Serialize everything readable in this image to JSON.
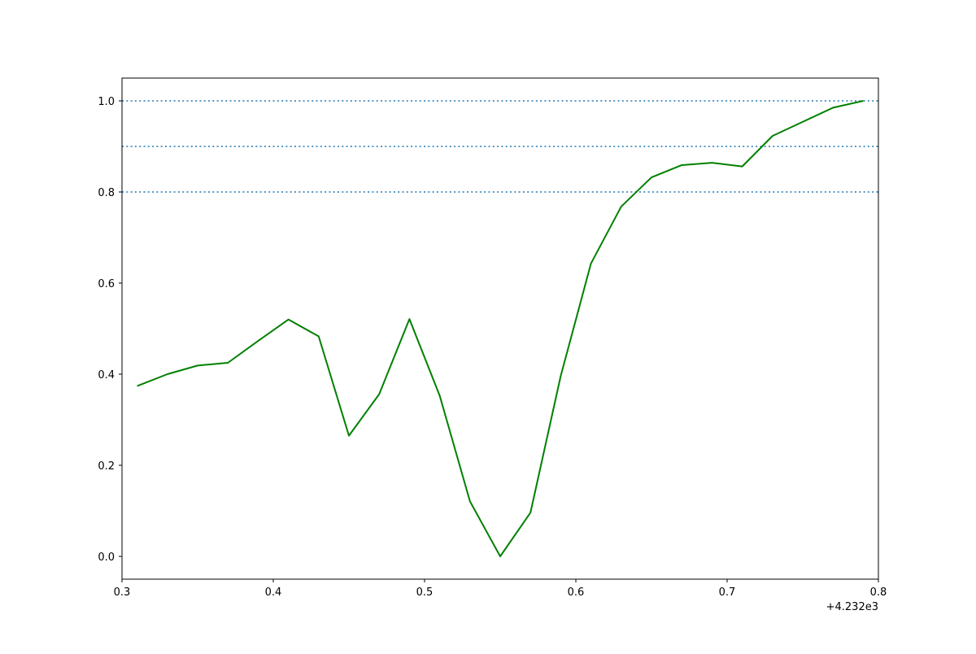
{
  "chart_data": {
    "type": "line",
    "title": "",
    "xlabel": "",
    "ylabel": "",
    "x_offset_label": "+4.232e3",
    "xlim": [
      4232.3,
      4232.8
    ],
    "ylim": [
      -0.05,
      1.05
    ],
    "x_ticks": [
      {
        "value": 4232.3,
        "label": "0.3"
      },
      {
        "value": 4232.4,
        "label": "0.4"
      },
      {
        "value": 4232.5,
        "label": "0.5"
      },
      {
        "value": 4232.6,
        "label": "0.6"
      },
      {
        "value": 4232.7,
        "label": "0.7"
      },
      {
        "value": 4232.8,
        "label": "0.8"
      }
    ],
    "y_ticks": [
      {
        "value": 0.0,
        "label": "0.0"
      },
      {
        "value": 0.2,
        "label": "0.2"
      },
      {
        "value": 0.4,
        "label": "0.4"
      },
      {
        "value": 0.6,
        "label": "0.6"
      },
      {
        "value": 0.8,
        "label": "0.8"
      },
      {
        "value": 1.0,
        "label": "1.0"
      }
    ],
    "reference_lines": [
      {
        "y": 0.8,
        "style": "dotted",
        "color": "#1f77b4"
      },
      {
        "y": 0.9,
        "style": "dotted",
        "color": "#1f77b4"
      },
      {
        "y": 1.0,
        "style": "dotted",
        "color": "#1f77b4"
      }
    ],
    "series": [
      {
        "color": "#008000",
        "x": [
          4232.31,
          4232.33,
          4232.35,
          4232.37,
          4232.39,
          4232.41,
          4232.43,
          4232.45,
          4232.47,
          4232.49,
          4232.51,
          4232.53,
          4232.55,
          4232.57,
          4232.59,
          4232.61,
          4232.63,
          4232.65,
          4232.67,
          4232.69,
          4232.71,
          4232.73,
          4232.75,
          4232.77,
          4232.79
        ],
        "y": [
          0.374,
          0.4,
          0.419,
          0.425,
          0.473,
          0.52,
          0.483,
          0.265,
          0.356,
          0.521,
          0.353,
          0.121,
          0.0,
          0.096,
          0.396,
          0.643,
          0.768,
          0.832,
          0.859,
          0.864,
          0.856,
          0.923,
          0.954,
          0.985,
          1.0
        ]
      }
    ],
    "grid": false,
    "legend": "none"
  }
}
